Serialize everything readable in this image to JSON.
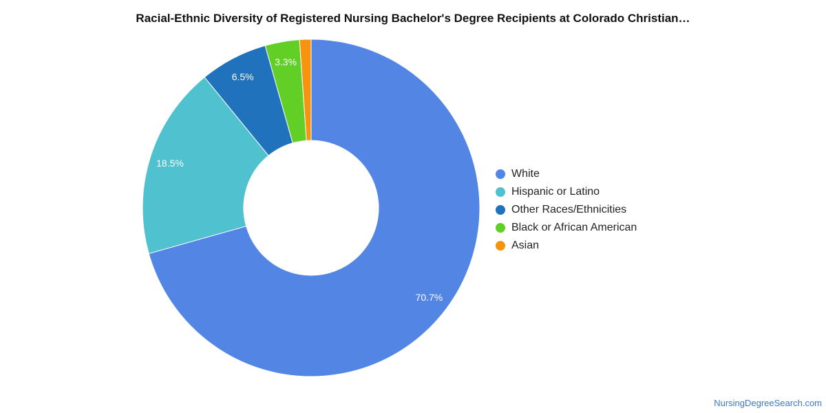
{
  "chart_data": {
    "type": "pie",
    "variant": "donut",
    "title": "Racial-Ethnic Diversity of Registered Nursing Bachelor's Degree Recipients at Colorado Christian…",
    "slices": [
      {
        "label": "White",
        "value": 70.7,
        "display": "70.7%",
        "color": "#5385e4"
      },
      {
        "label": "Hispanic or Latino",
        "value": 18.5,
        "display": "18.5%",
        "color": "#50c2cf"
      },
      {
        "label": "Other Races/Ethnicities",
        "value": 6.5,
        "display": "6.5%",
        "color": "#1f72bb"
      },
      {
        "label": "Black or African American",
        "value": 3.3,
        "display": "3.3%",
        "color": "#62cf26"
      },
      {
        "label": "Asian",
        "value": 1.1,
        "display": "",
        "color": "#f7940f"
      }
    ],
    "legend_position": "right"
  },
  "footer": {
    "source": "NursingDegreeSearch.com"
  }
}
